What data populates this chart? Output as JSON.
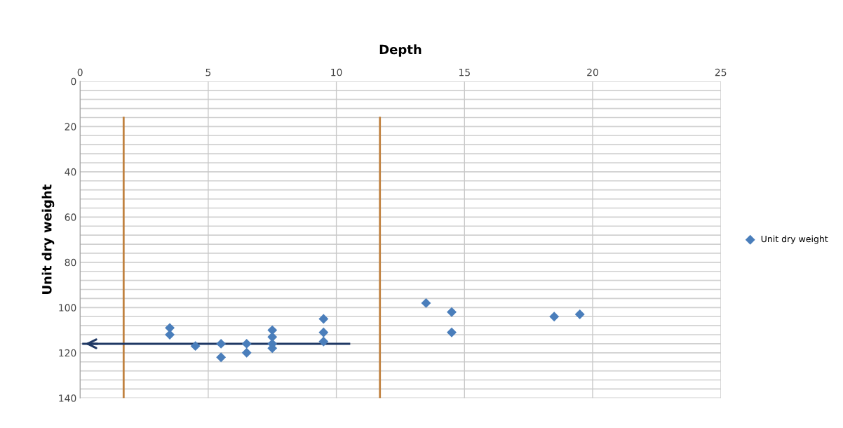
{
  "chart_data": {
    "type": "scatter",
    "title": "Depth",
    "ylabel": "Unit dry weight",
    "x": [
      3.5,
      3.5,
      4.5,
      5.5,
      5.5,
      6.5,
      6.5,
      7.5,
      7.5,
      7.5,
      7.5,
      9.5,
      9.5,
      9.5,
      13.5,
      14.5,
      14.5,
      18.5,
      19.5
    ],
    "series": [
      {
        "name": "Unit dry weight",
        "color": "#4a7ebb",
        "values": [
          109,
          112,
          117,
          116,
          122,
          116,
          120,
          110,
          113,
          116,
          118,
          105,
          111,
          115,
          98,
          102,
          111,
          104,
          103
        ]
      }
    ],
    "xlim": [
      0,
      25
    ],
    "xticks": [
      0,
      5,
      10,
      15,
      20,
      25
    ],
    "ylim": [
      140,
      0
    ],
    "yticks": [
      0,
      20,
      40,
      60,
      80,
      100,
      120,
      140
    ],
    "ref_lines": [
      {
        "axis": "x",
        "value": 1.7,
        "color": "#c0813f"
      },
      {
        "axis": "x",
        "value": 11.7,
        "color": "#c0813f"
      },
      {
        "axis": "y",
        "value": 116,
        "color": "#1f3864"
      }
    ],
    "grid": true,
    "legend": "right",
    "marker": "diamond"
  }
}
